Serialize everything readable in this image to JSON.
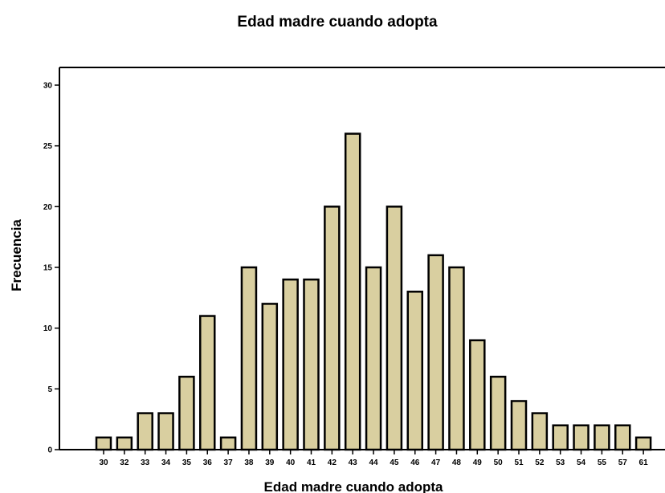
{
  "chart_data": {
    "type": "bar",
    "title": "Edad madre cuando adopta",
    "xlabel": "Edad madre cuando adopta",
    "ylabel": "Frecuencia",
    "categories": [
      "30",
      "32",
      "33",
      "34",
      "35",
      "36",
      "37",
      "38",
      "39",
      "40",
      "41",
      "42",
      "43",
      "44",
      "45",
      "46",
      "47",
      "48",
      "49",
      "50",
      "51",
      "52",
      "53",
      "54",
      "55",
      "57",
      "61"
    ],
    "values": [
      1,
      1,
      3,
      3,
      6,
      11,
      1,
      15,
      12,
      14,
      14,
      20,
      26,
      15,
      20,
      13,
      16,
      15,
      9,
      6,
      4,
      3,
      2,
      2,
      2,
      2,
      1
    ],
    "ylim": [
      0,
      30
    ],
    "yticks": [
      "0",
      "5",
      "10",
      "15",
      "20",
      "25",
      "30"
    ],
    "grid": false,
    "colors": {
      "bar_fill": "#d9cfa0",
      "bar_stroke": "#000000"
    }
  }
}
